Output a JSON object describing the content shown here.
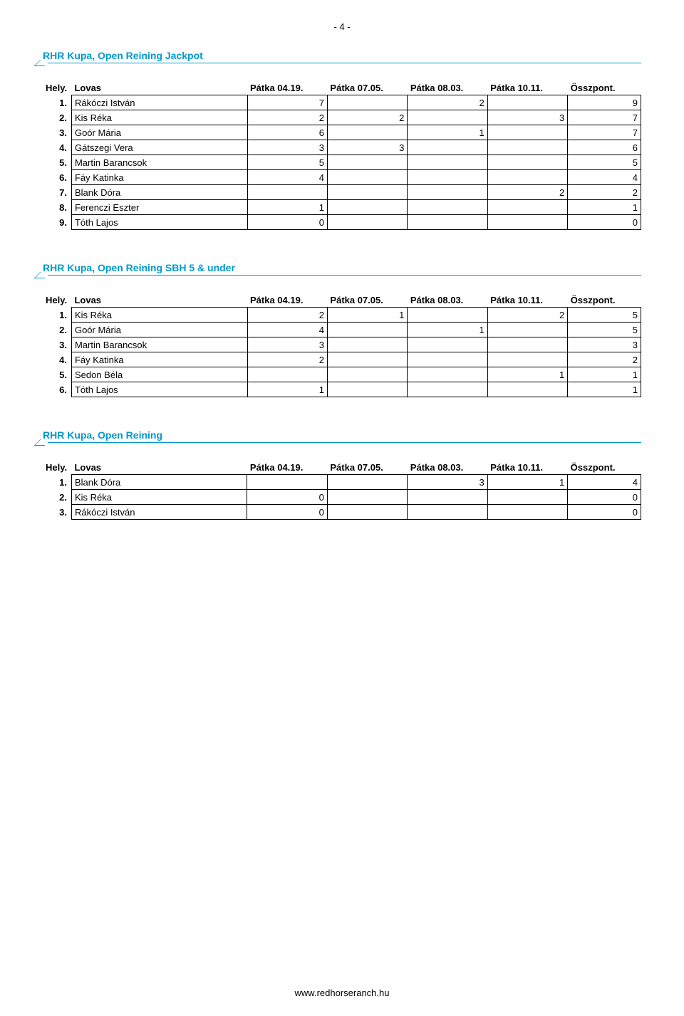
{
  "page_number": "- 4 -",
  "columns": {
    "hely": "Hely.",
    "lovas": "Lovas",
    "c1": "Pátka 04.19.",
    "c2": "Pátka 07.05.",
    "c3": "Pátka 08.03.",
    "c4": "Pátka 10.11.",
    "total": "Összpont."
  },
  "sections": [
    {
      "title": "RHR Kupa, Open Reining Jackpot",
      "rows": [
        {
          "rank": "1.",
          "name": "Rákóczi István",
          "c1": "7",
          "c2": "",
          "c3": "2",
          "c4": "",
          "total": "9"
        },
        {
          "rank": "2.",
          "name": "Kis Réka",
          "c1": "2",
          "c2": "2",
          "c3": "",
          "c4": "3",
          "total": "7"
        },
        {
          "rank": "3.",
          "name": "Goór Mária",
          "c1": "6",
          "c2": "",
          "c3": "1",
          "c4": "",
          "total": "7"
        },
        {
          "rank": "4.",
          "name": "Gátszegi Vera",
          "c1": "3",
          "c2": "3",
          "c3": "",
          "c4": "",
          "total": "6"
        },
        {
          "rank": "5.",
          "name": "Martin Barancsok",
          "c1": "5",
          "c2": "",
          "c3": "",
          "c4": "",
          "total": "5"
        },
        {
          "rank": "6.",
          "name": "Fáy Katinka",
          "c1": "4",
          "c2": "",
          "c3": "",
          "c4": "",
          "total": "4"
        },
        {
          "rank": "7.",
          "name": "Blank Dóra",
          "c1": "",
          "c2": "",
          "c3": "",
          "c4": "2",
          "total": "2"
        },
        {
          "rank": "8.",
          "name": "Ferenczi Eszter",
          "c1": "1",
          "c2": "",
          "c3": "",
          "c4": "",
          "total": "1"
        },
        {
          "rank": "9.",
          "name": "Tóth Lajos",
          "c1": "0",
          "c2": "",
          "c3": "",
          "c4": "",
          "total": "0"
        }
      ]
    },
    {
      "title": "RHR Kupa, Open Reining SBH 5 & under",
      "rows": [
        {
          "rank": "1.",
          "name": "Kis Réka",
          "c1": "2",
          "c2": "1",
          "c3": "",
          "c4": "2",
          "total": "5"
        },
        {
          "rank": "2.",
          "name": "Goór Mária",
          "c1": "4",
          "c2": "",
          "c3": "1",
          "c4": "",
          "total": "5"
        },
        {
          "rank": "3.",
          "name": "Martin Barancsok",
          "c1": "3",
          "c2": "",
          "c3": "",
          "c4": "",
          "total": "3"
        },
        {
          "rank": "4.",
          "name": "Fáy Katinka",
          "c1": "2",
          "c2": "",
          "c3": "",
          "c4": "",
          "total": "2"
        },
        {
          "rank": "5.",
          "name": "Sedon Béla",
          "c1": "",
          "c2": "",
          "c3": "",
          "c4": "1",
          "total": "1"
        },
        {
          "rank": "6.",
          "name": "Tóth Lajos",
          "c1": "1",
          "c2": "",
          "c3": "",
          "c4": "",
          "total": "1"
        }
      ]
    },
    {
      "title": "RHR Kupa, Open Reining",
      "rows": [
        {
          "rank": "1.",
          "name": "Blank Dóra",
          "c1": "",
          "c2": "",
          "c3": "3",
          "c4": "1",
          "total": "4"
        },
        {
          "rank": "2.",
          "name": "Kis Réka",
          "c1": "0",
          "c2": "",
          "c3": "",
          "c4": "",
          "total": "0"
        },
        {
          "rank": "3.",
          "name": "Rákóczi István",
          "c1": "0",
          "c2": "",
          "c3": "",
          "c4": "",
          "total": "0"
        }
      ]
    }
  ],
  "footer": "www.redhorseranch.hu"
}
